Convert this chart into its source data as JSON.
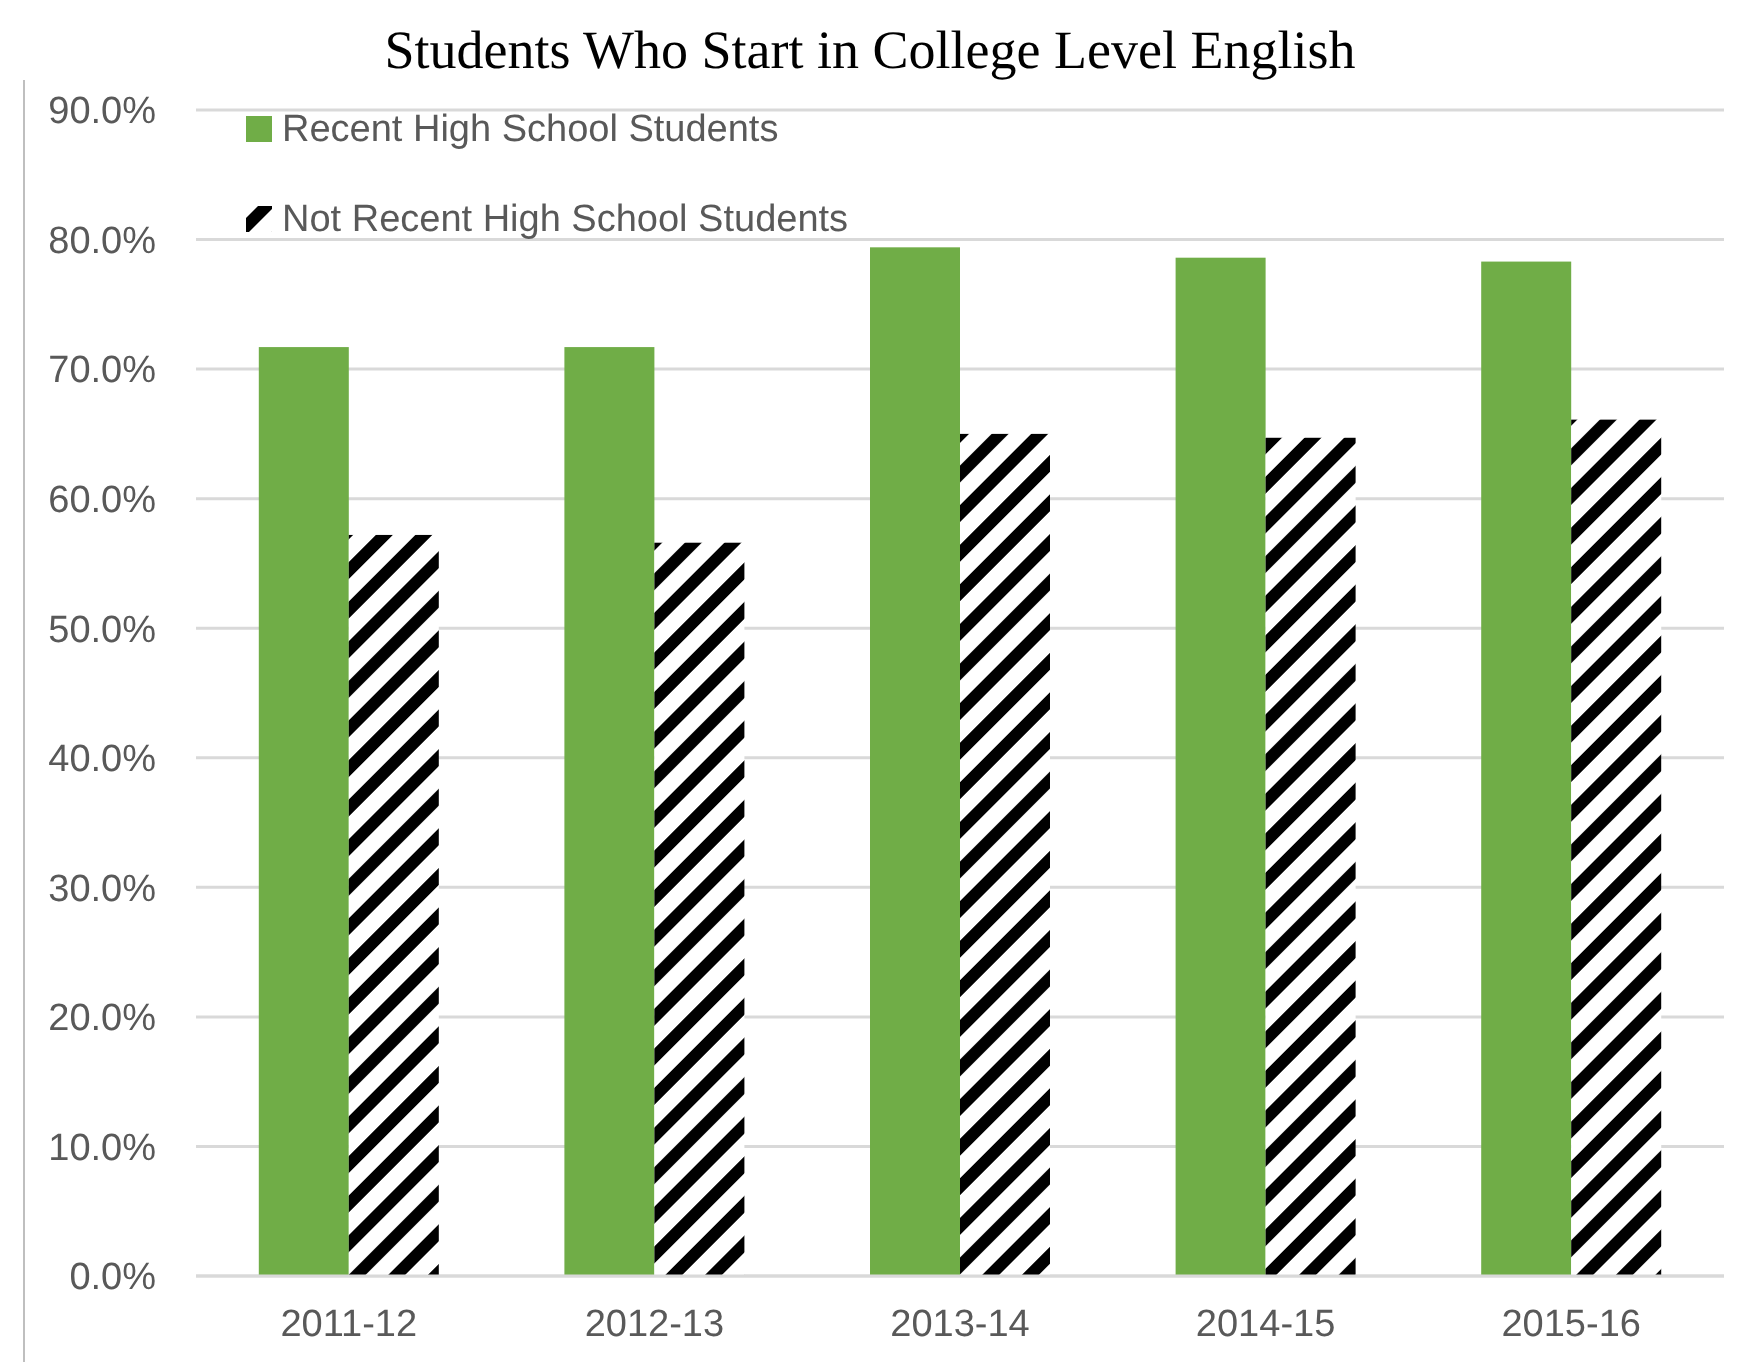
{
  "chart_data": {
    "type": "bar",
    "title": "Students Who Start in College Level English",
    "categories": [
      "2011-12",
      "2012-13",
      "2013-14",
      "2014-15",
      "2015-16"
    ],
    "series": [
      {
        "name": "Recent High School Students",
        "color": "#70ad47",
        "values": [
          71.7,
          71.7,
          79.4,
          78.6,
          78.3
        ]
      },
      {
        "name": "Not Recent High School Students",
        "color": "#000000",
        "values": [
          57.2,
          56.6,
          65.0,
          64.7,
          66.1
        ]
      }
    ],
    "ylim": [
      0,
      90
    ],
    "yticks": [
      {
        "value": 0,
        "label": "0.0%"
      },
      {
        "value": 10,
        "label": "10.0%"
      },
      {
        "value": 20,
        "label": "20.0%"
      },
      {
        "value": 30,
        "label": "30.0%"
      },
      {
        "value": 40,
        "label": "40.0%"
      },
      {
        "value": 50,
        "label": "50.0%"
      },
      {
        "value": 60,
        "label": "60.0%"
      },
      {
        "value": 70,
        "label": "70.0%"
      },
      {
        "value": 80,
        "label": "80.0%"
      },
      {
        "value": 90,
        "label": "90.0%"
      }
    ],
    "grid": "y",
    "legend": "top left"
  }
}
